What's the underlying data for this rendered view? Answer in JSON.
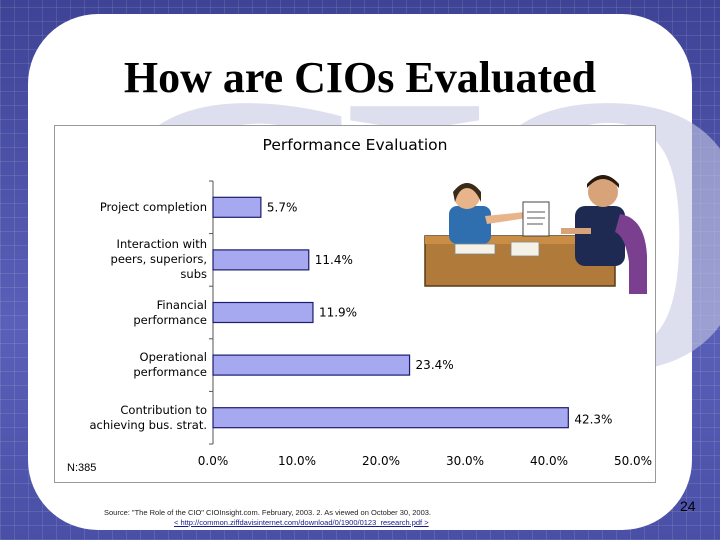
{
  "slide": {
    "title": "How are CIOs Evaluated",
    "page_number": "24",
    "source_line1": "Source: \"The Role of the CIO\" CIOInsight.com. February, 2003. 2. As viewed on October 30, 2003.",
    "source_line2": "< http://common.ziffdavisinternet.com/download/0/1900/0123_research.pdf >",
    "n_label": "N:385"
  },
  "colors": {
    "background": "#4a4fa6",
    "bar_fill": "#a6a8f0",
    "bar_stroke": "#1c1c6e"
  },
  "chart_data": {
    "type": "bar",
    "orientation": "horizontal",
    "title": "Performance Evaluation",
    "categories": [
      "Project completion",
      "Interaction with\npeers, superiors,\nsubs",
      "Financial\nperformance",
      "Operational\nperformance",
      "Contribution to\nachieving bus. strat."
    ],
    "values": [
      5.7,
      11.4,
      11.9,
      23.4,
      42.3
    ],
    "value_labels": [
      "5.7%",
      "11.4%",
      "11.9%",
      "23.4%",
      "42.3%"
    ],
    "xlim": [
      0,
      50
    ],
    "x_ticks": [
      "0.0%",
      "10.0%",
      "20.0%",
      "30.0%",
      "40.0%",
      "50.0%"
    ],
    "grid": false,
    "legend": "none"
  }
}
